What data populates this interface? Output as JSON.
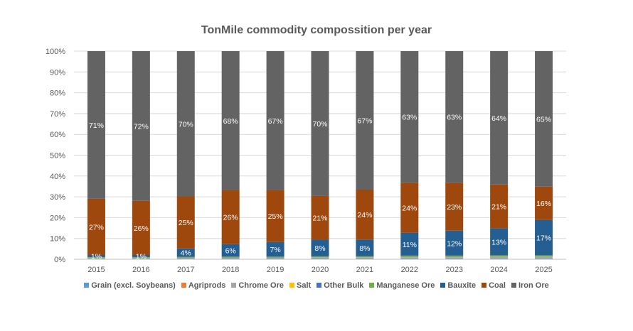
{
  "chart_data": {
    "type": "bar",
    "stacked": true,
    "title": "TonMile commodity compossition per year",
    "xlabel": "",
    "ylabel": "",
    "ylim": [
      0,
      100
    ],
    "yticks": [
      "0%",
      "10%",
      "20%",
      "30%",
      "40%",
      "50%",
      "60%",
      "70%",
      "80%",
      "90%",
      "100%"
    ],
    "categories": [
      "2015",
      "2016",
      "2017",
      "2018",
      "2019",
      "2020",
      "2021",
      "2022",
      "2023",
      "2024",
      "2025"
    ],
    "legend_position": "bottom",
    "series": [
      {
        "name": "Grain (excl. Soybeans)",
        "color": "#5b9bd5",
        "values": [
          0.2,
          0.2,
          0.2,
          0.2,
          0.2,
          0.2,
          0.2,
          0.3,
          0.3,
          0.3,
          0.3
        ],
        "labels": []
      },
      {
        "name": "Agriprods",
        "color": "#ed7d31",
        "values": [
          0.1,
          0.1,
          0.1,
          0.1,
          0.1,
          0.1,
          0.1,
          0.1,
          0.1,
          0.1,
          0.1
        ],
        "labels": []
      },
      {
        "name": "Chrome Ore",
        "color": "#a5a5a5",
        "values": [
          0.3,
          0.3,
          0.4,
          0.4,
          0.4,
          0.5,
          0.5,
          0.6,
          0.6,
          0.7,
          0.7
        ],
        "labels": []
      },
      {
        "name": "Salt",
        "color": "#ffc000",
        "values": [
          0.05,
          0.05,
          0.05,
          0.05,
          0.05,
          0.05,
          0.05,
          0.05,
          0.05,
          0.05,
          0.05
        ],
        "labels": []
      },
      {
        "name": "Other Bulk",
        "color": "#4472c4",
        "values": [
          0.1,
          0.1,
          0.1,
          0.1,
          0.1,
          0.1,
          0.1,
          0.1,
          0.1,
          0.1,
          0.1
        ],
        "labels": []
      },
      {
        "name": "Manganese Ore",
        "color": "#70ad47",
        "values": [
          0.3,
          0.3,
          0.35,
          0.4,
          0.4,
          0.45,
          0.5,
          0.6,
          0.6,
          0.65,
          0.65
        ],
        "labels": []
      },
      {
        "name": "Bauxite",
        "color": "#255e91",
        "values": [
          1,
          1,
          4,
          6,
          7,
          8,
          8,
          11,
          12,
          13,
          17
        ],
        "labels": [
          "1%",
          "1%",
          "4%",
          "6%",
          "7%",
          "8%",
          "8%",
          "11%",
          "12%",
          "13%",
          "17%"
        ]
      },
      {
        "name": "Coal",
        "color": "#9e480e",
        "values": [
          27,
          26,
          25,
          26,
          25,
          21,
          24,
          24,
          23,
          21,
          16
        ],
        "labels": [
          "27%",
          "26%",
          "25%",
          "26%",
          "25%",
          "21%",
          "24%",
          "24%",
          "23%",
          "21%",
          "16%"
        ]
      },
      {
        "name": "Iron Ore",
        "color": "#636363",
        "values": [
          71,
          72,
          70,
          68,
          67,
          70,
          67,
          63,
          63,
          64,
          65
        ],
        "labels": [
          "71%",
          "72%",
          "70%",
          "68%",
          "67%",
          "70%",
          "67%",
          "63%",
          "63%",
          "64%",
          "65%"
        ]
      }
    ]
  }
}
